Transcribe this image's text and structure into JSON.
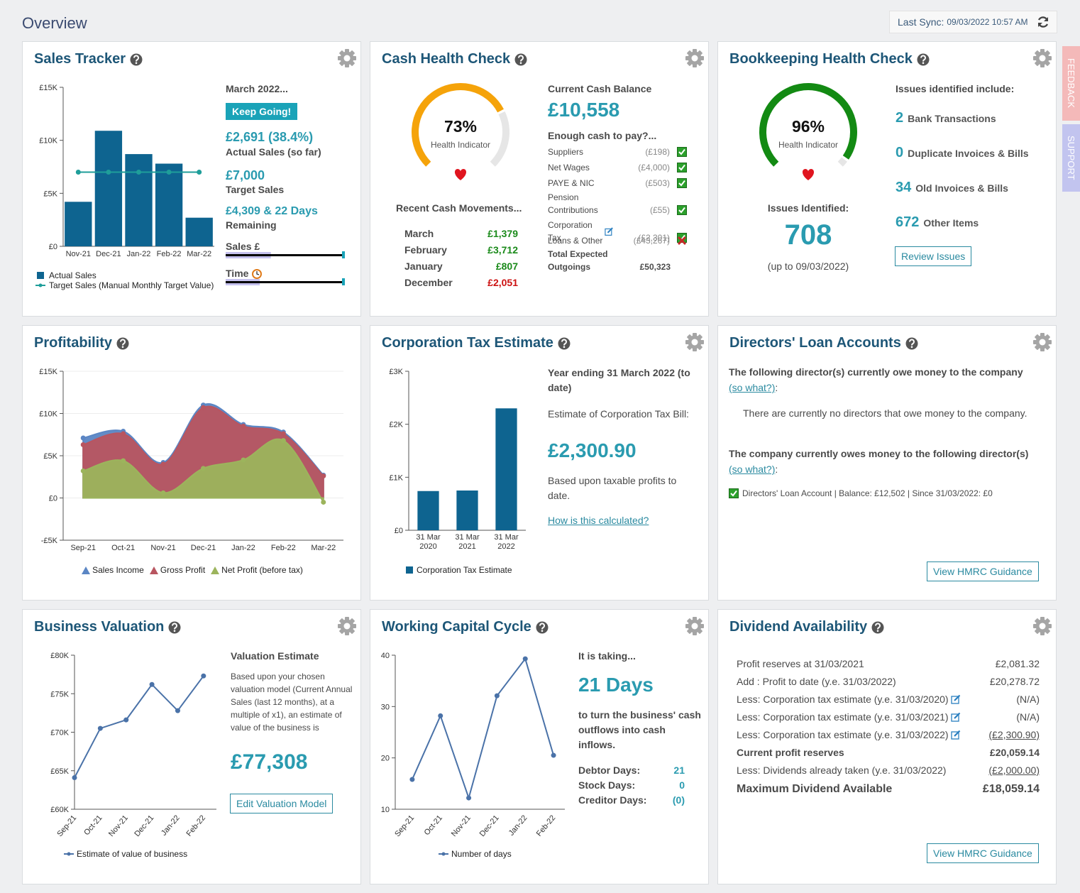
{
  "header": {
    "title": "Overview",
    "sync_label": "Last Sync:",
    "sync_value": "09/03/2022 10:57 AM"
  },
  "side_tabs": [
    "FEEDBACK",
    "SUPPORT"
  ],
  "sales_tracker": {
    "title": "Sales Tracker",
    "chart": {
      "type": "bar",
      "categories": [
        "Nov-21",
        "Dec-21",
        "Jan-22",
        "Feb-22",
        "Mar-22"
      ],
      "series": [
        {
          "name": "Actual Sales",
          "color": "#0e6490",
          "values": [
            4200,
            10900,
            8700,
            7800,
            2700
          ]
        },
        {
          "name": "Target Sales (Manual Monthly Target Value)",
          "type": "line",
          "color": "#1f9e9a",
          "values": [
            7000,
            7000,
            7000,
            7000,
            7000
          ]
        }
      ],
      "ylim": [
        0,
        15000
      ],
      "yticks": [
        {
          "value": 0,
          "label": "£0"
        },
        {
          "value": 5000,
          "label": "£5K"
        },
        {
          "value": 10000,
          "label": "£10K"
        },
        {
          "value": 15000,
          "label": "£15K"
        }
      ]
    },
    "period": "March 2022...",
    "badge": "Keep Going!",
    "actual": "£2,691 (38.4%)",
    "actual_label": "Actual Sales (so far)",
    "target": "£7,000",
    "target_label": "Target Sales",
    "remaining": "£4,309 & 22 Days",
    "remaining_label": "Remaining",
    "progress": [
      {
        "label": "Sales £",
        "value": 38.4
      },
      {
        "label": "Time",
        "value": 29
      }
    ]
  },
  "cash_health": {
    "title": "Cash Health Check",
    "gauge": {
      "value": 73,
      "value_label": "73%",
      "label": "Health Indicator",
      "color": "#f5a30a"
    },
    "balance_label": "Current Cash Balance",
    "balance": "£10,558",
    "enough_label": "Enough cash to pay?...",
    "outgoings": [
      {
        "label": "Suppliers",
        "value": "(£198)",
        "status": "ok"
      },
      {
        "label": "Net Wages",
        "value": "(£4,000)",
        "status": "ok"
      },
      {
        "label": "PAYE & NIC",
        "value": "(£503)",
        "status": "ok"
      },
      {
        "label": "Pension Contributions",
        "value": "(£55)",
        "status": "ok"
      },
      {
        "label": "Corporation Tax",
        "value": "(£2,301)",
        "status": "ok",
        "edit": true
      },
      {
        "label": "Loans & Other",
        "value": "(£43,267)",
        "status": "fail"
      }
    ],
    "total_label": "Total Expected Outgoings",
    "total": "£50,323",
    "movements_label": "Recent Cash Movements...",
    "movements": [
      {
        "month": "March",
        "value": "£1,379",
        "color": "#1a8a1a"
      },
      {
        "month": "February",
        "value": "£3,712",
        "color": "#1a8a1a"
      },
      {
        "month": "January",
        "value": "£807",
        "color": "#1a8a1a"
      },
      {
        "month": "December",
        "value": "£2,051",
        "color": "#cc1111"
      }
    ]
  },
  "bookkeeping": {
    "title": "Bookkeeping Health Check",
    "gauge": {
      "value": 96,
      "value_label": "96%",
      "label": "Health Indicator",
      "color": "#138a13"
    },
    "issues_label": "Issues Identified:",
    "issues": "708",
    "issues_date": "(up to 09/03/2022)",
    "include_label": "Issues identified include:",
    "items": [
      {
        "count": 2,
        "label": "Bank Transactions"
      },
      {
        "count": 0,
        "label": "Duplicate Invoices & Bills"
      },
      {
        "count": 34,
        "label": "Old Invoices & Bills"
      },
      {
        "count": 672,
        "label": "Other Items"
      }
    ],
    "button": "Review Issues"
  },
  "profitability": {
    "title": "Profitability",
    "chart": {
      "type": "area",
      "categories": [
        "Sep-21",
        "Oct-21",
        "Nov-21",
        "Dec-21",
        "Jan-22",
        "Feb-22",
        "Mar-22"
      ],
      "series": [
        {
          "name": "Sales Income",
          "color": "#5b86c4",
          "values": [
            7100,
            7900,
            4200,
            11000,
            8700,
            7800,
            2700
          ]
        },
        {
          "name": "Gross Profit",
          "color": "#b85560",
          "values": [
            6300,
            7600,
            4000,
            10700,
            8500,
            7600,
            2600
          ]
        },
        {
          "name": "Net Profit (before tax)",
          "color": "#9cb45c",
          "values": [
            3200,
            4400,
            600,
            3500,
            4500,
            6800,
            -500
          ]
        }
      ],
      "ylim": [
        -5000,
        15000
      ],
      "yticks": [
        {
          "value": -5000,
          "label": "-£5K"
        },
        {
          "value": 0,
          "label": "£0"
        },
        {
          "value": 5000,
          "label": "£5K"
        },
        {
          "value": 10000,
          "label": "£10K"
        },
        {
          "value": 15000,
          "label": "£15K"
        }
      ],
      "grid": true
    }
  },
  "corporation_tax": {
    "title": "Corporation Tax Estimate",
    "chart": {
      "type": "bar",
      "categories": [
        "31 Mar 2020",
        "31 Mar 2021",
        "31 Mar 2022"
      ],
      "series": [
        {
          "name": "Corporation Tax Estimate",
          "color": "#0e6490",
          "values": [
            740,
            750,
            2300
          ]
        }
      ],
      "ylim": [
        0,
        3000
      ],
      "yticks": [
        {
          "value": 0,
          "label": "£0"
        },
        {
          "value": 1000,
          "label": "£1K"
        },
        {
          "value": 2000,
          "label": "£2K"
        },
        {
          "value": 3000,
          "label": "£3K"
        }
      ]
    },
    "year": "Year ending 31 March 2022 (to date)",
    "estimate_label": "Estimate of Corporation Tax Bill:",
    "estimate": "£2,300.90",
    "basis": "Based upon taxable profits to date.",
    "link": "How is this calculated?"
  },
  "directors_loans": {
    "title": "Directors' Loan Accounts",
    "owe_company": "The following director(s) currently owe money to the company",
    "so_what": "(so what?)",
    "so_what_suffix": ":",
    "none_text": "There are currently no directors that owe money to the company.",
    "company_owes": "The company currently owes money to the following director(s)",
    "account": "Directors' Loan Account | Balance: £12,502 | Since 31/03/2022: £0",
    "button": "View HMRC Guidance"
  },
  "business_valuation": {
    "title": "Business Valuation",
    "chart": {
      "type": "line",
      "categories": [
        "Sep-21",
        "Oct-21",
        "Nov-21",
        "Dec-21",
        "Jan-22",
        "Feb-22"
      ],
      "series": [
        {
          "name": "Estimate of value of business",
          "color": "#4a72a8",
          "values": [
            64100,
            70500,
            71600,
            76200,
            72800,
            77308
          ]
        }
      ],
      "ylim": [
        60000,
        80000
      ],
      "yticks": [
        {
          "value": 60000,
          "label": "£60K"
        },
        {
          "value": 65000,
          "label": "£65K"
        },
        {
          "value": 70000,
          "label": "£70K"
        },
        {
          "value": 75000,
          "label": "£75K"
        },
        {
          "value": 80000,
          "label": "£80K"
        }
      ]
    },
    "estimate_label": "Valuation Estimate",
    "description": "Based upon your chosen valuation model (Current Annual Sales (last 12 months), at a multiple of x1), an estimate of value of the business is",
    "estimate": "£77,308",
    "button": "Edit Valuation Model"
  },
  "working_capital": {
    "title": "Working Capital Cycle",
    "chart": {
      "type": "line",
      "categories": [
        "Sep-21",
        "Oct-21",
        "Nov-21",
        "Dec-21",
        "Jan-22",
        "Feb-22"
      ],
      "series": [
        {
          "name": "Number of days",
          "color": "#4a72a8",
          "values": [
            15.8,
            28.2,
            12.2,
            32.1,
            39.3,
            20.5
          ]
        }
      ],
      "ylim": [
        10,
        40
      ],
      "yticks": [
        10,
        20,
        30,
        40
      ]
    },
    "intro": "It is taking...",
    "days": "21 Days",
    "description": "to turn the business' cash outflows into cash inflows.",
    "metrics": [
      {
        "label": "Debtor Days:",
        "value": "21"
      },
      {
        "label": "Stock Days:",
        "value": "0"
      },
      {
        "label": "Creditor Days:",
        "value": "(0)"
      }
    ]
  },
  "dividend": {
    "title": "Dividend Availability",
    "rows": [
      {
        "label": "Profit reserves at 31/03/2021",
        "value": "£2,081.32"
      },
      {
        "label": "Add : Profit to date (y.e. 31/03/2022)",
        "value": "£20,278.72"
      },
      {
        "label": "Less: Corporation tax estimate (y.e. 31/03/2020)",
        "value": "(N/A)",
        "edit": true
      },
      {
        "label": "Less: Corporation tax estimate (y.e. 31/03/2021)",
        "value": "(N/A)",
        "edit": true
      },
      {
        "label": "Less: Corporation tax estimate (y.e. 31/03/2022)",
        "value": "(£2,300.90)",
        "edit": true,
        "underline": true
      },
      {
        "label": "Current profit reserves",
        "value": "£20,059.14",
        "bold": true
      },
      {
        "label": "Less: Dividends already taken (y.e. 31/03/2022)",
        "value": "(£2,000.00)",
        "underline": true
      },
      {
        "label": "Maximum Dividend Available",
        "value": "£18,059.14",
        "bold": true,
        "large": true
      }
    ],
    "button": "View HMRC Guidance"
  }
}
